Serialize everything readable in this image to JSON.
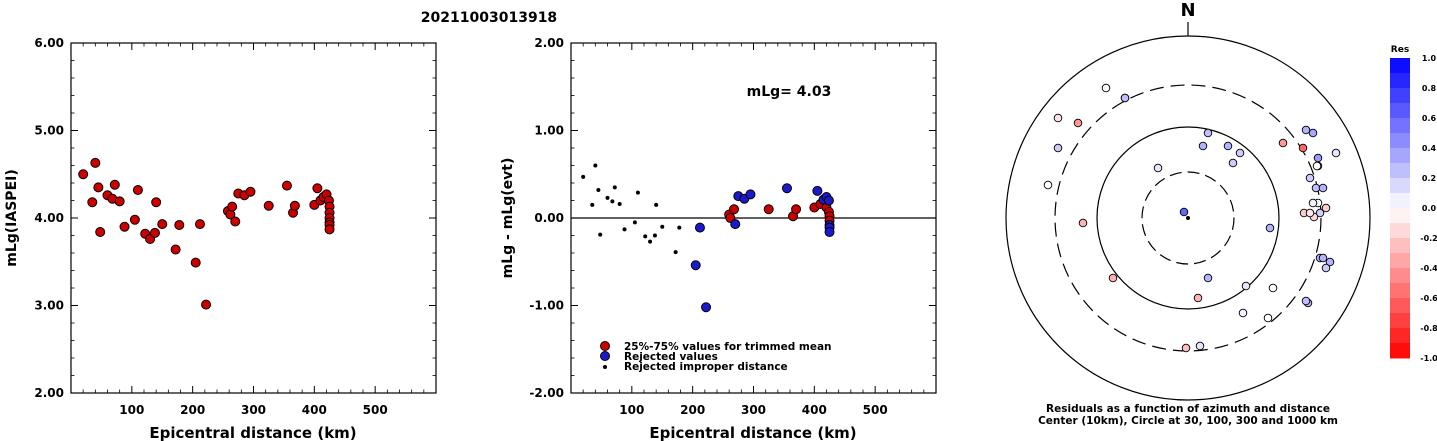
{
  "event_id": "20211003013918",
  "chart_data": [
    {
      "type": "scatter",
      "xlabel": "Epicentral distance (km)",
      "ylabel": "mLg(IASPEI)",
      "xlim": [
        0,
        600
      ],
      "ylim": [
        2.0,
        6.0
      ],
      "x_ticks": [
        "100",
        "200",
        "300",
        "400",
        "500"
      ],
      "y_ticks": [
        "2.00",
        "3.00",
        "4.00",
        "5.00",
        "6.00"
      ],
      "series": [
        {
          "color": "#cc0000",
          "points": [
            [
              20,
              4.5
            ],
            [
              35,
              4.18
            ],
            [
              40,
              4.63
            ],
            [
              45,
              4.35
            ],
            [
              48,
              3.84
            ],
            [
              60,
              4.26
            ],
            [
              68,
              4.22
            ],
            [
              72,
              4.38
            ],
            [
              80,
              4.19
            ],
            [
              88,
              3.9
            ],
            [
              105,
              3.98
            ],
            [
              110,
              4.32
            ],
            [
              122,
              3.82
            ],
            [
              130,
              3.76
            ],
            [
              138,
              3.83
            ],
            [
              140,
              4.18
            ],
            [
              150,
              3.93
            ],
            [
              172,
              3.64
            ],
            [
              178,
              3.92
            ],
            [
              205,
              3.49
            ],
            [
              212,
              3.93
            ],
            [
              222,
              3.01
            ],
            [
              258,
              4.08
            ],
            [
              262,
              4.04
            ],
            [
              265,
              4.13
            ],
            [
              270,
              3.96
            ],
            [
              275,
              4.28
            ],
            [
              285,
              4.26
            ],
            [
              295,
              4.3
            ],
            [
              325,
              4.14
            ],
            [
              355,
              4.37
            ],
            [
              365,
              4.06
            ],
            [
              368,
              4.14
            ],
            [
              400,
              4.15
            ],
            [
              405,
              4.34
            ],
            [
              410,
              4.2
            ],
            [
              415,
              4.24
            ],
            [
              420,
              4.27
            ],
            [
              424,
              4.2
            ],
            [
              425,
              4.13
            ],
            [
              425,
              4.06
            ],
            [
              425,
              4.0
            ],
            [
              425,
              3.95
            ],
            [
              425,
              3.92
            ],
            [
              425,
              3.87
            ]
          ]
        }
      ]
    },
    {
      "type": "scatter",
      "xlabel": "Epicentral distance (km)",
      "ylabel": "mLg - mLg(evt)",
      "xlim": [
        0,
        600
      ],
      "ylim": [
        -2.0,
        2.0
      ],
      "x_ticks": [
        "100",
        "200",
        "300",
        "400",
        "500"
      ],
      "y_ticks": [
        "-2.00",
        "-1.00",
        "0.00",
        "1.00",
        "2.00"
      ],
      "annotation": "mLg= 4.03",
      "series": [
        {
          "name": "25%-75% values for trimmed mean",
          "color": "#cc0000",
          "points": [
            [
              260,
              0.04
            ],
            [
              262,
              0.0
            ],
            [
              268,
              0.1
            ],
            [
              325,
              0.1
            ],
            [
              365,
              0.02
            ],
            [
              370,
              0.1
            ],
            [
              400,
              0.12
            ],
            [
              410,
              0.16
            ],
            [
              420,
              0.12
            ],
            [
              424,
              0.07
            ],
            [
              425,
              0.02
            ],
            [
              425,
              -0.03
            ]
          ]
        },
        {
          "name": "Rejected values",
          "color": "#1a1acc",
          "points": [
            [
              205,
              -0.54
            ],
            [
              212,
              -0.11
            ],
            [
              222,
              -1.02
            ],
            [
              270,
              -0.07
            ],
            [
              275,
              0.25
            ],
            [
              285,
              0.22
            ],
            [
              295,
              0.27
            ],
            [
              355,
              0.34
            ],
            [
              405,
              0.31
            ],
            [
              415,
              0.21
            ],
            [
              420,
              0.24
            ],
            [
              424,
              0.2
            ],
            [
              425,
              -0.08
            ],
            [
              425,
              -0.11
            ],
            [
              425,
              -0.16
            ]
          ]
        },
        {
          "name": "Rejected improper distance",
          "color": "#000000",
          "points": [
            [
              20,
              0.47
            ],
            [
              35,
              0.15
            ],
            [
              40,
              0.6
            ],
            [
              45,
              0.32
            ],
            [
              48,
              -0.19
            ],
            [
              60,
              0.23
            ],
            [
              68,
              0.19
            ],
            [
              72,
              0.35
            ],
            [
              80,
              0.16
            ],
            [
              88,
              -0.13
            ],
            [
              105,
              -0.05
            ],
            [
              110,
              0.29
            ],
            [
              122,
              -0.21
            ],
            [
              130,
              -0.27
            ],
            [
              138,
              -0.2
            ],
            [
              140,
              0.15
            ],
            [
              150,
              -0.1
            ],
            [
              172,
              -0.39
            ],
            [
              178,
              -0.11
            ]
          ]
        }
      ]
    },
    {
      "type": "scatter",
      "subtype": "polar",
      "north_label": "N",
      "caption_line1": "Residuals as a function of azimuth and distance",
      "caption_line2": "Center (10km), Circle at 30, 100, 300 and 1000 km",
      "colorbar": {
        "title": "Res",
        "labels": [
          "1.0",
          "0.8",
          "0.6",
          "0.4",
          "0.2",
          "0.0",
          "-0.2",
          "-0.4",
          "-0.6",
          "-0.8",
          "-1.0"
        ],
        "range": [
          -1.0,
          1.0
        ]
      },
      "points": [
        [
          -63,
          -120,
          0.25
        ],
        [
          -63,
          -120,
          0.25
        ],
        [
          -130,
          -100,
          -0.1
        ],
        [
          -110,
          -95,
          -0.4
        ],
        [
          -82,
          -130,
          0.0
        ],
        [
          -30,
          -50,
          0.1
        ],
        [
          -4,
          -6,
          0.6
        ],
        [
          -130,
          -70,
          0.2
        ],
        [
          -140,
          -33,
          0.0
        ],
        [
          -105,
          5,
          -0.3
        ],
        [
          -75,
          60,
          -0.3
        ],
        [
          20,
          60,
          0.3
        ],
        [
          15,
          -72,
          0.3
        ],
        [
          20,
          -85,
          0.25
        ],
        [
          45,
          -55,
          0.2
        ],
        [
          40,
          -72,
          0.3
        ],
        [
          52,
          -65,
          0.2
        ],
        [
          95,
          -75,
          -0.4
        ],
        [
          115,
          -70,
          -0.6
        ],
        [
          118,
          -88,
          0.3
        ],
        [
          125,
          -85,
          0.35
        ],
        [
          130,
          -60,
          0.4
        ],
        [
          130,
          -52,
          0.05
        ],
        [
          129,
          -52,
          0.0
        ],
        [
          122,
          -40,
          0.2
        ],
        [
          128,
          -30,
          0.25
        ],
        [
          135,
          -30,
          0.3
        ],
        [
          130,
          -15,
          0.0
        ],
        [
          116,
          -5,
          -0.2
        ],
        [
          138,
          -10,
          -0.2
        ],
        [
          132,
          -5,
          0.2
        ],
        [
          126,
          -1,
          -0.15
        ],
        [
          82,
          10,
          0.3
        ],
        [
          132,
          40,
          0.3
        ],
        [
          142,
          44,
          0.3
        ],
        [
          148,
          -65,
          0.1
        ],
        [
          125,
          -15,
          0.05
        ],
        [
          138,
          50,
          0.2
        ],
        [
          122,
          -5,
          -0.1
        ],
        [
          135,
          40,
          0.3
        ],
        [
          120,
          85,
          0.3
        ],
        [
          58,
          68,
          0.1
        ],
        [
          55,
          95,
          0.05
        ],
        [
          80,
          100,
          0.0
        ],
        [
          118,
          83,
          0.25
        ],
        [
          85,
          70,
          0.0
        ],
        [
          10,
          80,
          -0.3
        ],
        [
          12,
          128,
          0.1
        ],
        [
          -2,
          130,
          -0.25
        ]
      ]
    }
  ]
}
